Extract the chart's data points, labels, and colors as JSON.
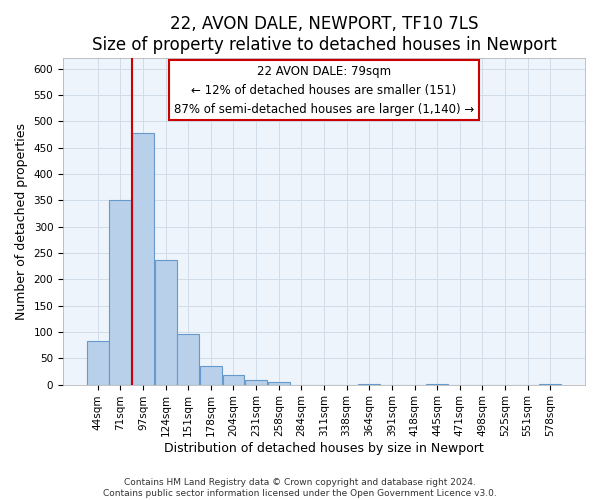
{
  "title": "22, AVON DALE, NEWPORT, TF10 7LS",
  "subtitle": "Size of property relative to detached houses in Newport",
  "xlabel": "Distribution of detached houses by size in Newport",
  "ylabel": "Number of detached properties",
  "bar_labels": [
    "44sqm",
    "71sqm",
    "97sqm",
    "124sqm",
    "151sqm",
    "178sqm",
    "204sqm",
    "231sqm",
    "258sqm",
    "284sqm",
    "311sqm",
    "338sqm",
    "364sqm",
    "391sqm",
    "418sqm",
    "445sqm",
    "471sqm",
    "498sqm",
    "525sqm",
    "551sqm",
    "578sqm"
  ],
  "bar_values": [
    83,
    350,
    478,
    236,
    97,
    35,
    18,
    8,
    5,
    0,
    0,
    0,
    2,
    0,
    0,
    1,
    0,
    0,
    0,
    0,
    2
  ],
  "bar_color": "#b8d0ea",
  "bar_edge_color": "#6699cc",
  "vline_x": 1.5,
  "vline_color": "#cc0000",
  "ylim": [
    0,
    620
  ],
  "yticks": [
    0,
    50,
    100,
    150,
    200,
    250,
    300,
    350,
    400,
    450,
    500,
    550,
    600
  ],
  "annotation_line1": "22 AVON DALE: 79sqm",
  "annotation_line2": "← 12% of detached houses are smaller (151)",
  "annotation_line3": "87% of semi-detached houses are larger (1,140) →",
  "footnote": "Contains HM Land Registry data © Crown copyright and database right 2024.\nContains public sector information licensed under the Open Government Licence v3.0.",
  "title_fontsize": 12,
  "subtitle_fontsize": 10,
  "xlabel_fontsize": 9,
  "ylabel_fontsize": 9,
  "tick_fontsize": 7.5,
  "annotation_fontsize": 8.5,
  "footnote_fontsize": 6.5,
  "grid_color": "#d0dde8",
  "background_color": "#eef4fb"
}
